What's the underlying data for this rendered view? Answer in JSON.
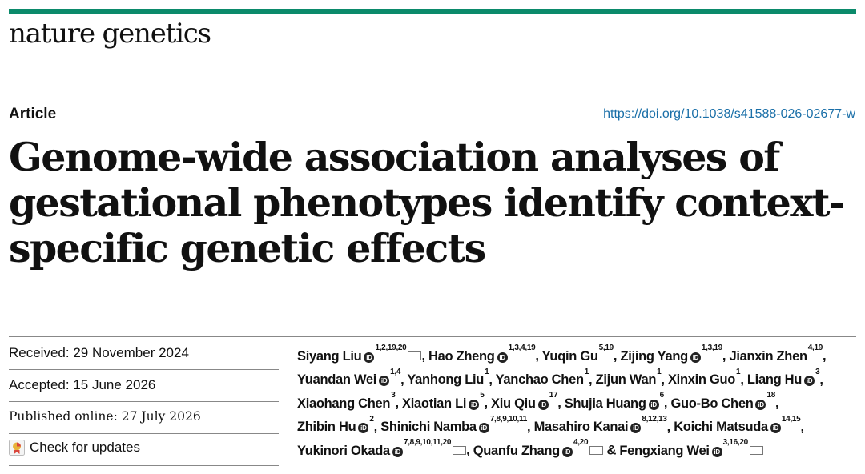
{
  "journal": {
    "name": "nature genetics",
    "brand_color": "#0b8a6b"
  },
  "article": {
    "type": "Article",
    "doi": "https://doi.org/10.1038/s41588-026-02677-w",
    "title": "Genome-wide association analyses of gestational phenotypes identify context-specific genetic effects"
  },
  "dates": {
    "received": "Received: 29 November 2024",
    "accepted": "Accepted: 15 June 2026",
    "published": "Published online: 27 July 2026"
  },
  "updates": {
    "label": "Check for updates",
    "icon": "check-for-updates-icon"
  },
  "authors": [
    {
      "name": "Siyang Liu",
      "orcid": true,
      "aff": "1,2,19,20",
      "mail": true,
      "sep": ", "
    },
    {
      "name": "Hao Zheng",
      "orcid": true,
      "aff": "1,3,4,19",
      "mail": false,
      "sep": ", "
    },
    {
      "name": "Yuqin Gu",
      "orcid": false,
      "aff": "5,19",
      "mail": false,
      "sep": ", "
    },
    {
      "name": "Zijing Yang",
      "orcid": true,
      "aff": "1,3,19",
      "mail": false,
      "sep": ", "
    },
    {
      "name": "Jianxin Zhen",
      "orcid": false,
      "aff": "4,19",
      "mail": false,
      "sep": ", "
    },
    {
      "name": "Yuandan Wei",
      "orcid": true,
      "aff": "1,4",
      "mail": false,
      "sep": ", "
    },
    {
      "name": "Yanhong Liu",
      "orcid": false,
      "aff": "1",
      "mail": false,
      "sep": ", "
    },
    {
      "name": "Yanchao Chen",
      "orcid": false,
      "aff": "1",
      "mail": false,
      "sep": ", "
    },
    {
      "name": "Zijun Wan",
      "orcid": false,
      "aff": "1",
      "mail": false,
      "sep": ", "
    },
    {
      "name": "Xinxin Guo",
      "orcid": false,
      "aff": "1",
      "mail": false,
      "sep": ", "
    },
    {
      "name": "Liang Hu",
      "orcid": true,
      "aff": "3",
      "mail": false,
      "sep": ", "
    },
    {
      "name": "Xiaohang Chen",
      "orcid": false,
      "aff": "3",
      "mail": false,
      "sep": ", "
    },
    {
      "name": "Xiaotian Li",
      "orcid": true,
      "aff": "5",
      "mail": false,
      "sep": ", "
    },
    {
      "name": "Xiu Qiu",
      "orcid": true,
      "aff": "17",
      "mail": false,
      "sep": ", "
    },
    {
      "name": "Shujia Huang",
      "orcid": true,
      "aff": "6",
      "mail": false,
      "sep": ", "
    },
    {
      "name": "Guo-Bo Chen",
      "orcid": true,
      "aff": "18",
      "mail": false,
      "sep": ", "
    },
    {
      "name": "Zhibin Hu",
      "orcid": true,
      "aff": "2",
      "mail": false,
      "sep": ", "
    },
    {
      "name": "Shinichi Namba",
      "orcid": true,
      "aff": "7,8,9,10,11",
      "mail": false,
      "sep": ", "
    },
    {
      "name": "Masahiro Kanai",
      "orcid": true,
      "aff": "8,12,13",
      "mail": false,
      "sep": ", "
    },
    {
      "name": "Koichi Matsuda",
      "orcid": true,
      "aff": "14,15",
      "mail": false,
      "sep": ", "
    },
    {
      "name": "Yukinori Okada",
      "orcid": true,
      "aff": "7,8,9,10,11,20",
      "mail": true,
      "sep": ", "
    },
    {
      "name": "Quanfu Zhang",
      "orcid": true,
      "aff": "4,20",
      "mail": true,
      "sep": " & "
    },
    {
      "name": "Fengxiang Wei",
      "orcid": true,
      "aff": "3,16,20",
      "mail": true,
      "sep": ""
    }
  ]
}
